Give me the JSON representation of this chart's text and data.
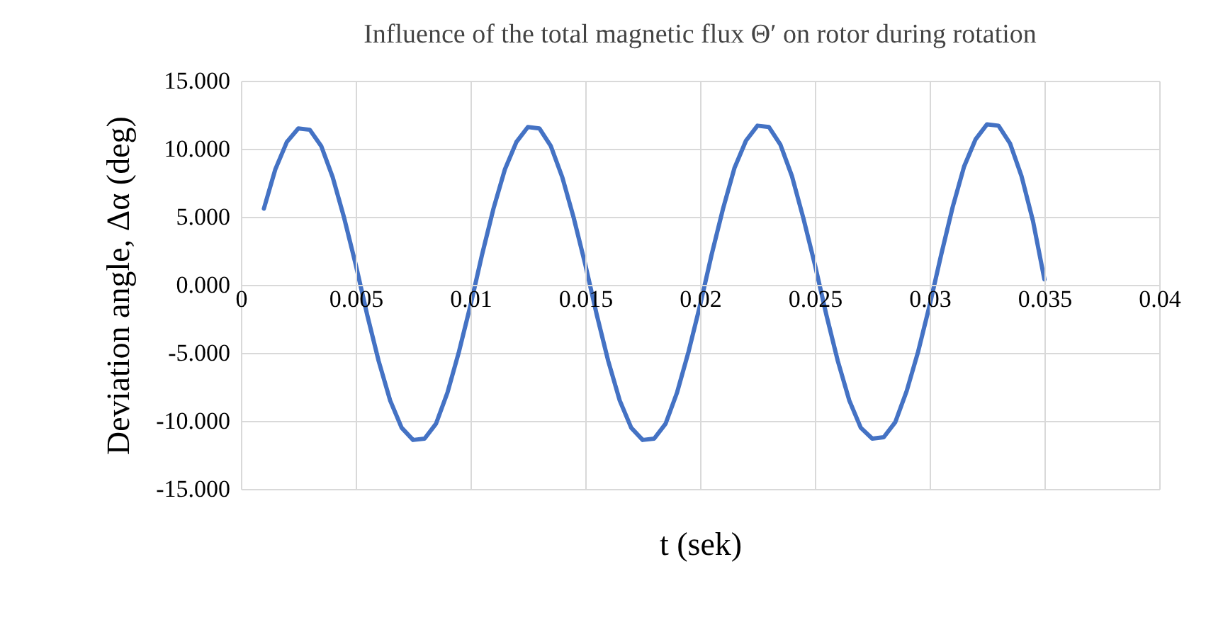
{
  "chart_data": {
    "type": "line",
    "title": "Influence of the total magnetic flux Θ′ on rotor during rotation",
    "xlabel": "t (sek)",
    "ylabel": "Deviation angle, Δα (deg)",
    "x": [
      0.001,
      0.0015,
      0.002,
      0.0025,
      0.003,
      0.0035,
      0.004,
      0.0045,
      0.005,
      0.0055,
      0.006,
      0.0065,
      0.007,
      0.0075,
      0.008,
      0.0085,
      0.009,
      0.0095,
      0.01,
      0.0105,
      0.011,
      0.0115,
      0.012,
      0.0125,
      0.013,
      0.0135,
      0.014,
      0.0145,
      0.015,
      0.0155,
      0.016,
      0.0165,
      0.017,
      0.0175,
      0.018,
      0.0185,
      0.019,
      0.0195,
      0.02,
      0.0205,
      0.021,
      0.0215,
      0.022,
      0.0225,
      0.023,
      0.0235,
      0.024,
      0.0245,
      0.025,
      0.0255,
      0.026,
      0.0265,
      0.027,
      0.0275,
      0.028,
      0.0285,
      0.029,
      0.0295,
      0.03,
      0.0305,
      0.031,
      0.0315,
      0.032,
      0.0325,
      0.033,
      0.0335,
      0.034,
      0.0345,
      0.035
    ],
    "series": [
      {
        "color": "#4472c4",
        "values": [
          5.6,
          8.5,
          10.5,
          11.5,
          11.4,
          10.2,
          7.9,
          4.9,
          1.5,
          -2.2,
          -5.6,
          -8.5,
          -10.5,
          -11.4,
          -11.3,
          -10.2,
          -7.9,
          -4.9,
          -1.5,
          2.2,
          5.6,
          8.5,
          10.5,
          11.6,
          11.5,
          10.2,
          7.9,
          4.9,
          1.5,
          -2.2,
          -5.6,
          -8.5,
          -10.5,
          -11.4,
          -11.3,
          -10.2,
          -7.9,
          -4.9,
          -1.5,
          2.2,
          5.6,
          8.6,
          10.6,
          11.7,
          11.6,
          10.3,
          8.0,
          4.9,
          1.5,
          -2.2,
          -5.6,
          -8.5,
          -10.5,
          -11.3,
          -11.2,
          -10.1,
          -7.8,
          -4.9,
          -1.5,
          2.2,
          5.7,
          8.7,
          10.7,
          11.8,
          11.7,
          10.4,
          8.0,
          4.7,
          0.4
        ]
      }
    ],
    "xlim": [
      0,
      0.04
    ],
    "xticks": [
      0,
      0.005,
      0.01,
      0.015,
      0.02,
      0.025,
      0.03,
      0.035,
      0.04
    ],
    "ylim": [
      -15,
      15
    ],
    "yticks": [
      {
        "value": -15,
        "label": "-15.000"
      },
      {
        "value": -10,
        "label": "-10.000"
      },
      {
        "value": -5,
        "label": "-5.000"
      },
      {
        "value": 0,
        "label": "0.000"
      },
      {
        "value": 5,
        "label": "5.000"
      },
      {
        "value": 10,
        "label": "10.000"
      },
      {
        "value": 15,
        "label": "15.000"
      }
    ],
    "grid": true,
    "marker": "none",
    "line_style": "solid"
  }
}
